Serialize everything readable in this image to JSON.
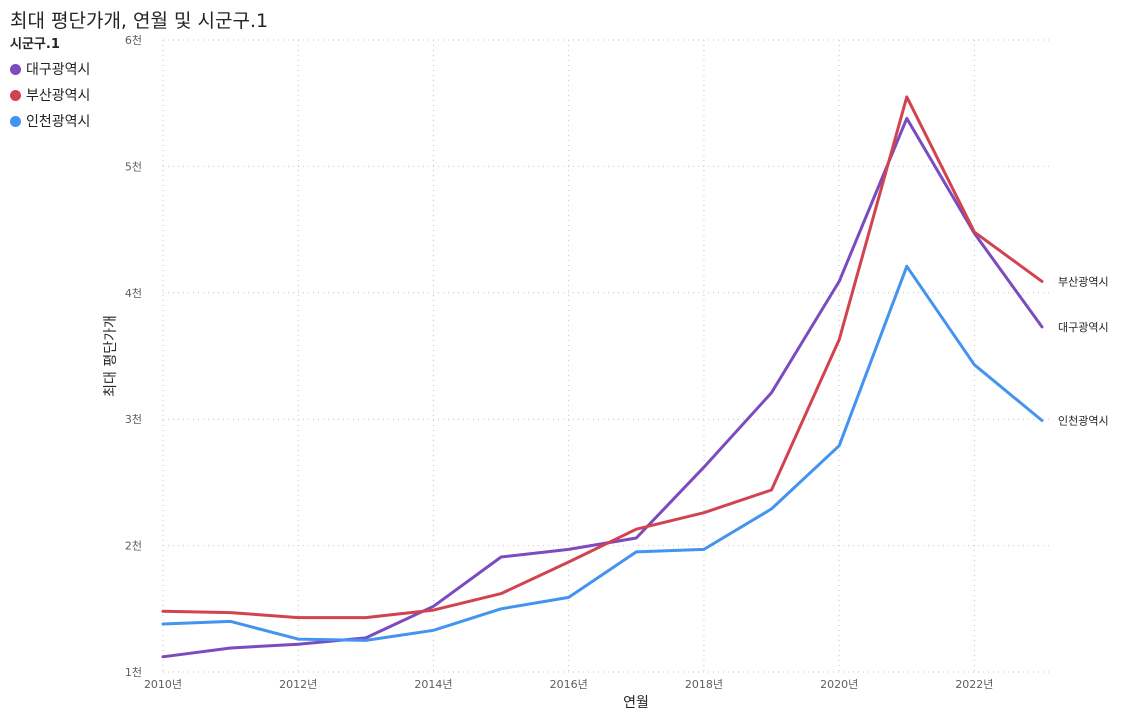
{
  "title": "최대 평단가개, 연월 및 시군구.1",
  "legend": {
    "title": "시군구.1",
    "items": [
      {
        "label": "대구광역시",
        "color": "#7b4bbf"
      },
      {
        "label": "부산광역시",
        "color": "#d1434f"
      },
      {
        "label": "인천광역시",
        "color": "#4393f0"
      }
    ]
  },
  "chart_data": {
    "type": "line",
    "xlabel": "연월",
    "ylabel": "최대 평단가개",
    "x": [
      2010,
      2011,
      2012,
      2013,
      2014,
      2015,
      2016,
      2017,
      2018,
      2019,
      2020,
      2021,
      2022,
      2023
    ],
    "x_ticks": [
      2010,
      2012,
      2014,
      2016,
      2018,
      2020,
      2022
    ],
    "x_tick_labels": [
      "2010년",
      "2012년",
      "2014년",
      "2016년",
      "2018년",
      "2020년",
      "2022년"
    ],
    "y_ticks": [
      1000,
      2000,
      3000,
      4000,
      5000,
      6000
    ],
    "y_tick_labels": [
      "1천",
      "2천",
      "3천",
      "4천",
      "5천",
      "6천"
    ],
    "ylim": [
      1000,
      6000
    ],
    "grid": true,
    "series": [
      {
        "name": "대구광역시",
        "color": "#7b4bbf",
        "values": [
          1120,
          1190,
          1220,
          1270,
          1520,
          1910,
          1970,
          2060,
          2620,
          3210,
          4090,
          5380,
          4470,
          3730
        ],
        "end_label": "대구광역시"
      },
      {
        "name": "부산광역시",
        "color": "#d1434f",
        "values": [
          1480,
          1470,
          1430,
          1430,
          1490,
          1620,
          1870,
          2130,
          2260,
          2440,
          3630,
          5550,
          4480,
          4090
        ],
        "end_label": "부산광역시"
      },
      {
        "name": "인천광역시",
        "color": "#4393f0",
        "values": [
          1380,
          1400,
          1260,
          1250,
          1330,
          1500,
          1590,
          1950,
          1970,
          2290,
          2790,
          4210,
          3430,
          2990
        ],
        "end_label": "인천광역시"
      }
    ]
  }
}
